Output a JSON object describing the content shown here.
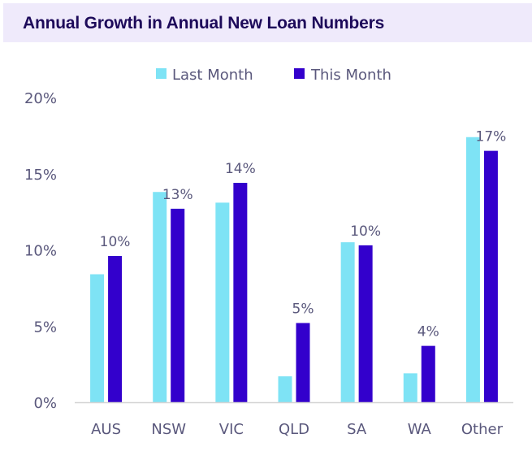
{
  "chart_data": {
    "type": "bar",
    "title": "Annual Growth in Annual New Loan Numbers",
    "xlabel": "",
    "ylabel": "",
    "categories": [
      "AUS",
      "NSW",
      "VIC",
      "QLD",
      "SA",
      "WA",
      "Other"
    ],
    "series": [
      {
        "name": "Last Month",
        "color": "#7ee3f5",
        "values": [
          8.4,
          13.8,
          13.1,
          1.7,
          10.5,
          1.9,
          17.4
        ]
      },
      {
        "name": "This Month",
        "color": "#3300cc",
        "values": [
          9.6,
          12.7,
          14.4,
          5.2,
          10.3,
          3.7,
          16.5
        ]
      }
    ],
    "data_labels": {
      "series": "This Month",
      "labels": [
        "10%",
        "13%",
        "14%",
        "5%",
        "10%",
        "4%",
        "17%"
      ]
    },
    "ylim": [
      0,
      20
    ],
    "yticks": [
      0,
      5,
      10,
      15,
      20
    ],
    "ytick_labels": [
      "0%",
      "5%",
      "10%",
      "15%",
      "20%"
    ],
    "grid": false,
    "legend_position": "top-center"
  }
}
